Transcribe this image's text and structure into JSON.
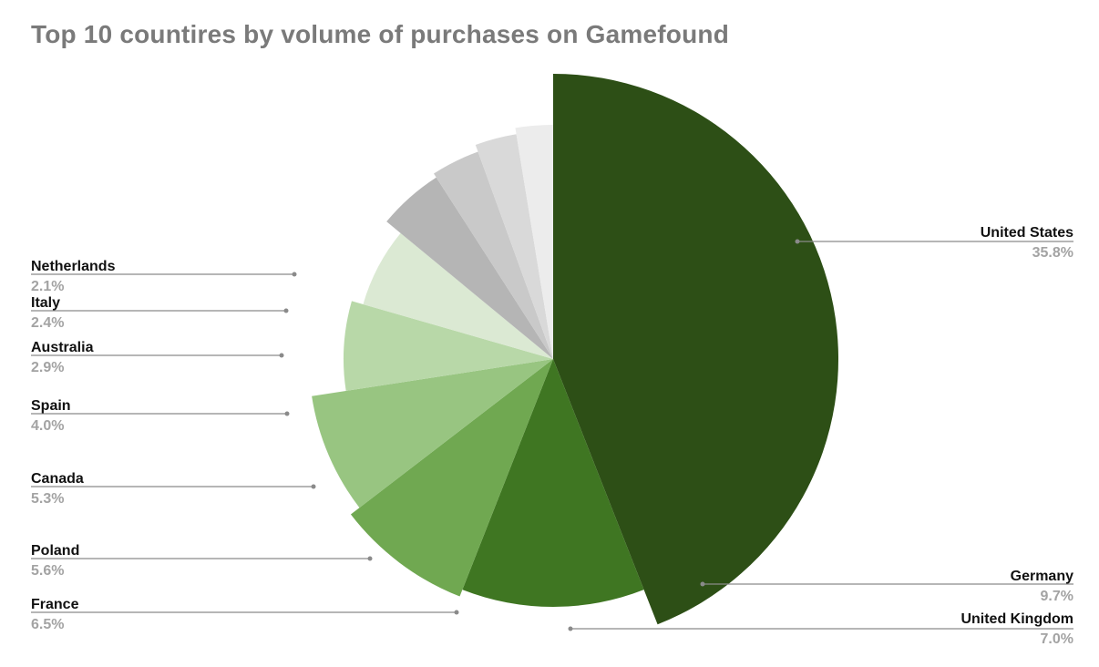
{
  "chart_data": {
    "type": "pie",
    "title": "Top 10 countires by volume of purchases on Gamefound",
    "legend": "none",
    "slices": [
      {
        "label": "United States",
        "value": 35.8,
        "value_label": "35.8%",
        "color": "#2d4f16",
        "shade": "#2d4f16"
      },
      {
        "label": "Germany",
        "value": 9.7,
        "value_label": "9.7%",
        "color": "#3f7622",
        "shade": "#3f7622"
      },
      {
        "label": "United Kingdom",
        "value": 7.0,
        "value_label": "7.0%",
        "color": "#70a851",
        "shade": "#70a851"
      },
      {
        "label": "France",
        "value": 6.5,
        "value_label": "6.5%",
        "color": "#98c581",
        "shade": "#98c581"
      },
      {
        "label": "Poland",
        "value": 5.6,
        "value_label": "5.6%",
        "color": "#b8d8a8",
        "shade": "#b8d8a8"
      },
      {
        "label": "Canada",
        "value": 5.3,
        "value_label": "5.3%",
        "color": "#dbe9d3",
        "shade": "#dbe9d3"
      },
      {
        "label": "Spain",
        "value": 4.0,
        "value_label": "4.0%",
        "color": "#b5b5b5",
        "shade": "#b5b5b5"
      },
      {
        "label": "Australia",
        "value": 2.9,
        "value_label": "2.9%",
        "color": "#c9c9c9",
        "shade": "#c9c9c9"
      },
      {
        "label": "Italy",
        "value": 2.4,
        "value_label": "2.4%",
        "color": "#d9d9d9",
        "shade": "#d9d9d9"
      },
      {
        "label": "Netherlands",
        "value": 2.1,
        "value_label": "2.1%",
        "color": "#ececec",
        "shade": "#ececec"
      }
    ]
  }
}
